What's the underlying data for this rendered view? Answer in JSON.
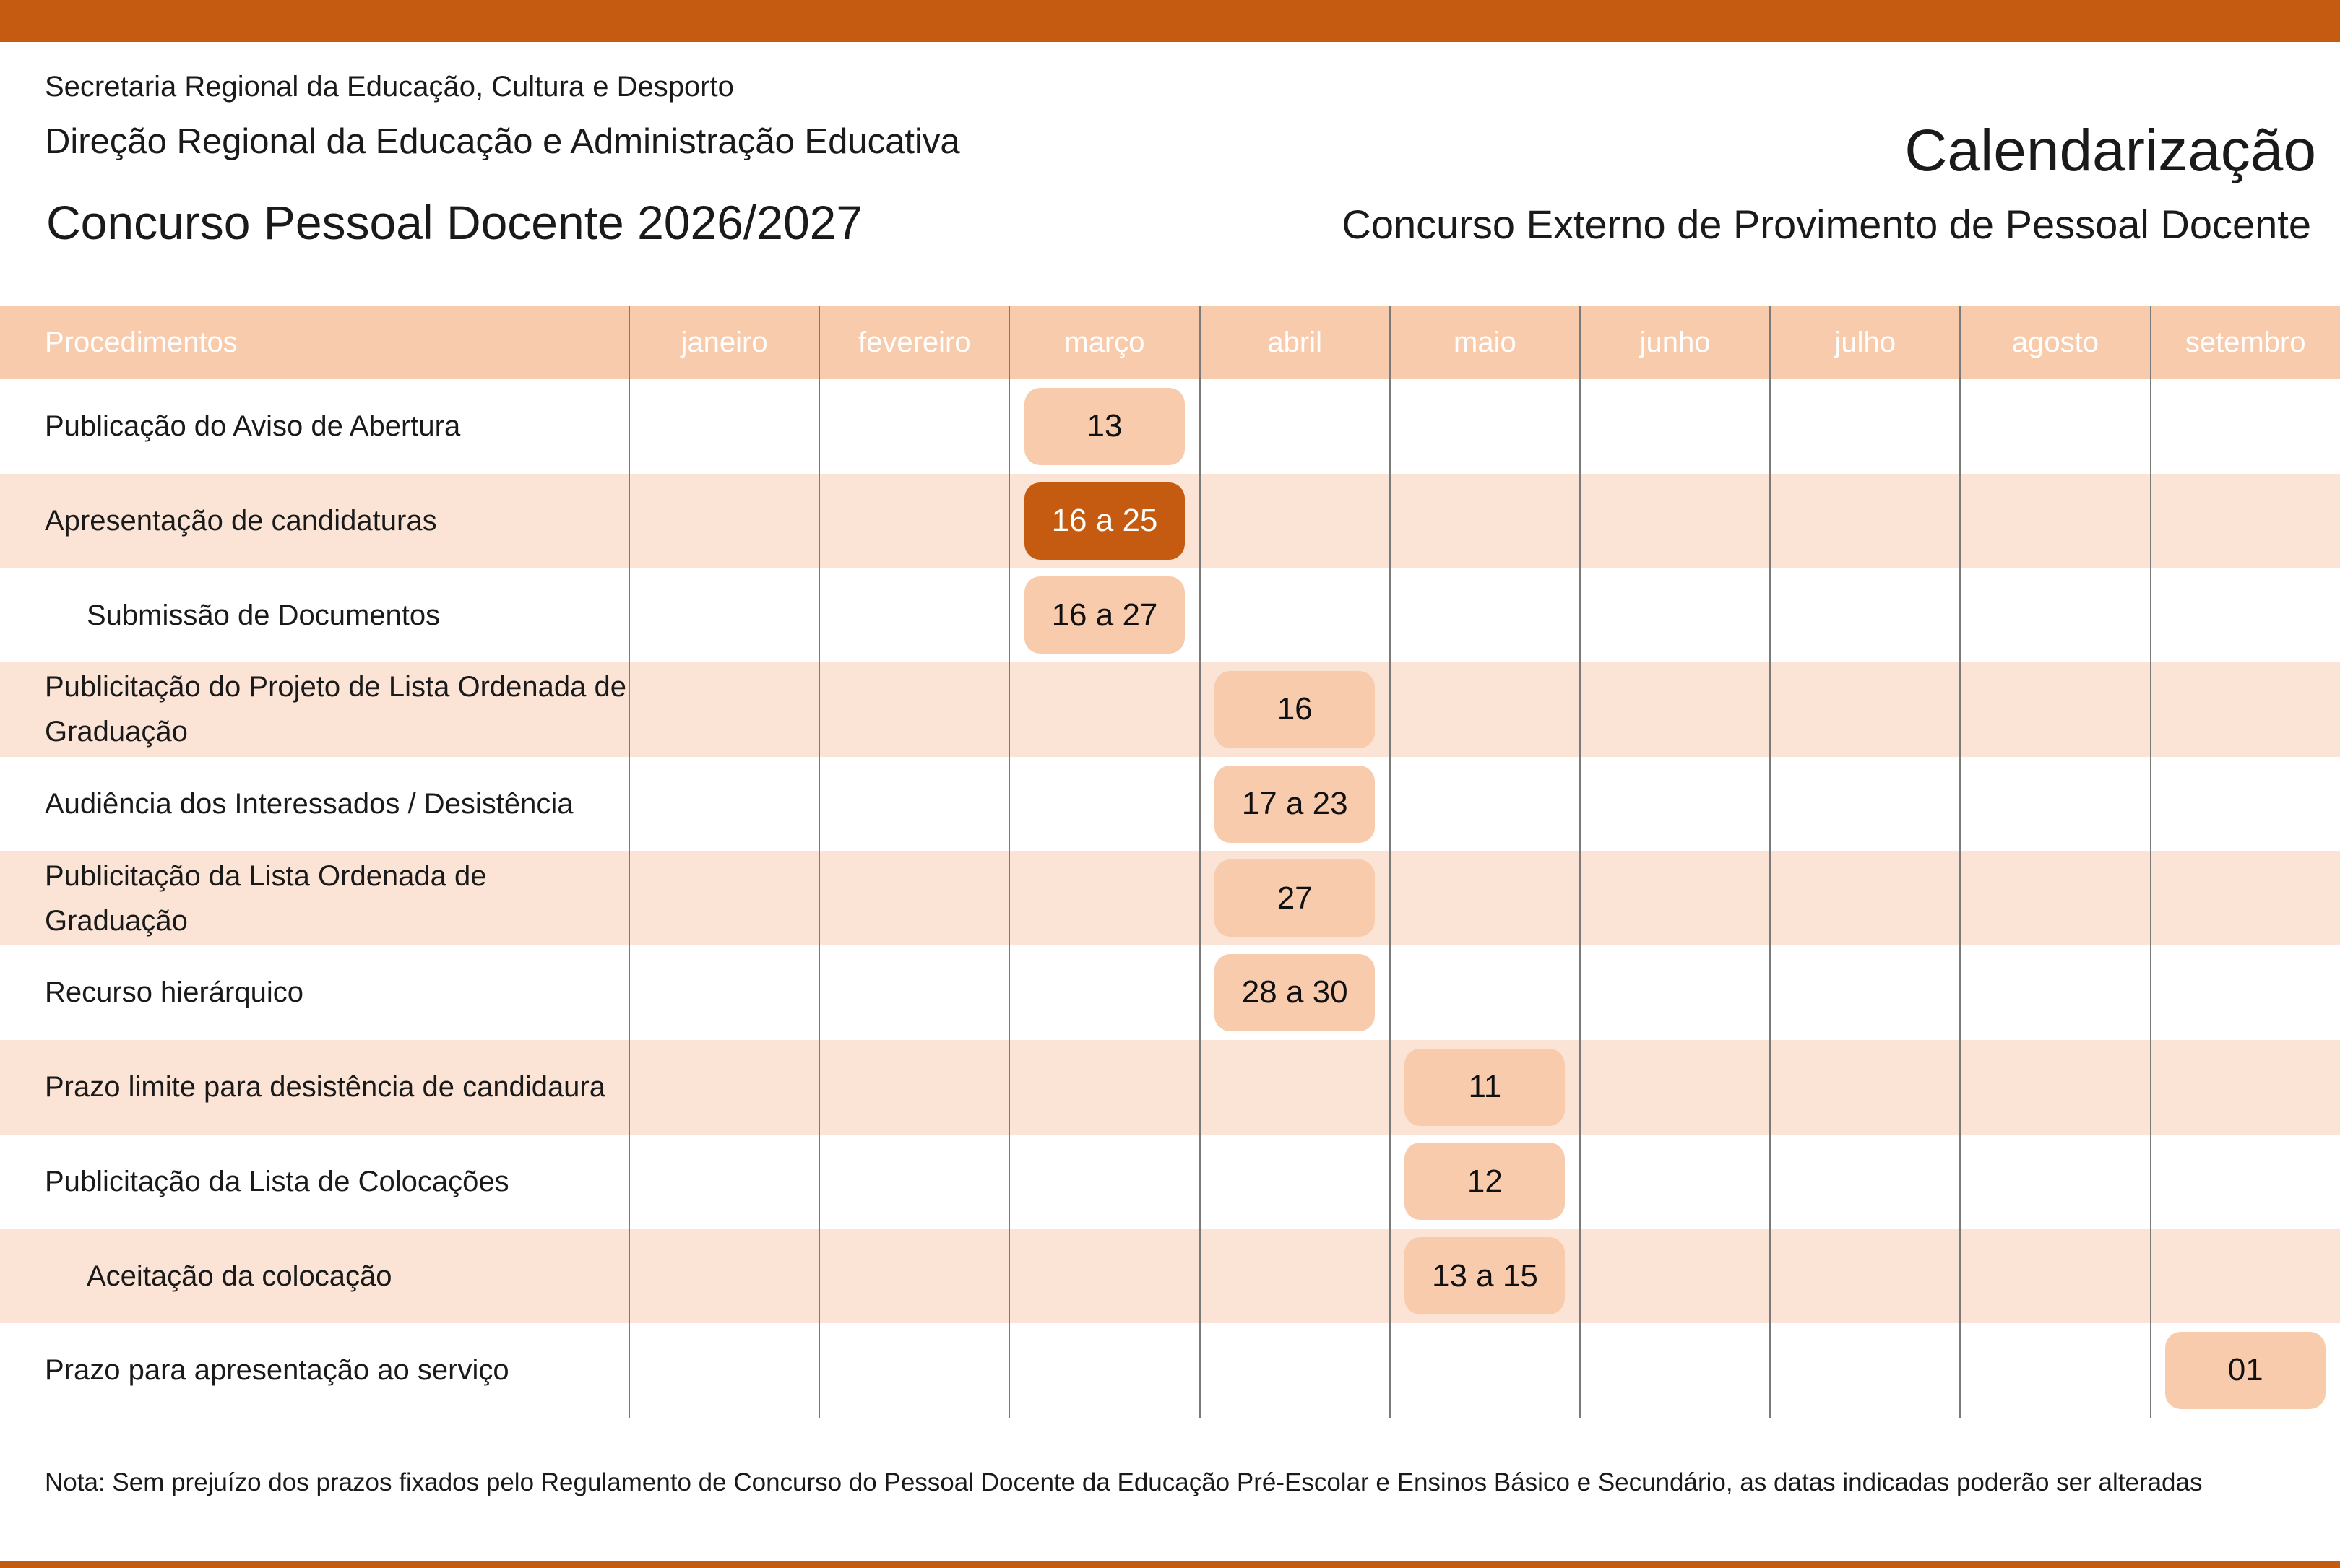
{
  "header": {
    "secretaria": "Secretaria Regional da Educação, Cultura e Desporto",
    "direcao": "Direção Regional da Educação e Administração Educativa",
    "concurso": "Concurso Pessoal Docente 2026/2027",
    "title": "Calendarização",
    "subtitle": "Concurso Externo de Provimento de Pessoal Docente"
  },
  "colors": {
    "accent": "#C55A11",
    "header_bg": "#F8CBAD",
    "alt_row": "#FBE4D5"
  },
  "table": {
    "first_header": "Procedimentos",
    "months": [
      "janeiro",
      "fevereiro",
      "março",
      "abril",
      "maio",
      "junho",
      "julho",
      "agosto",
      "setembro"
    ],
    "rows": [
      {
        "label": "Publicação do Aviso de Abertura",
        "month": 2,
        "date": "13"
      },
      {
        "label": "Apresentação de candidaturas",
        "month": 2,
        "date": "16 a 25",
        "highlight": true
      },
      {
        "label": "Submissão de Documentos",
        "month": 2,
        "date": "16 a 27",
        "indent": true
      },
      {
        "label": "Publicitação do Projeto de Lista Ordenada de Graduação",
        "month": 3,
        "date": "16"
      },
      {
        "label": "Audiência dos Interessados / Desistência",
        "month": 3,
        "date": "17 a 23"
      },
      {
        "label": "Publicitação da Lista Ordenada de Graduação",
        "month": 3,
        "date": "27"
      },
      {
        "label": "Recurso hierárquico",
        "month": 3,
        "date": "28 a 30"
      },
      {
        "label": "Prazo limite para desistência de candidaura",
        "month": 4,
        "date": "11"
      },
      {
        "label": "Publicitação da Lista de Colocações",
        "month": 4,
        "date": "12"
      },
      {
        "label": "Aceitação da colocação",
        "month": 4,
        "date": "13 a 15",
        "indent": true
      },
      {
        "label": "Prazo para apresentação ao serviço",
        "month": 8,
        "date": "01"
      }
    ]
  },
  "note": "Nota: Sem prejuízo dos prazos fixados pelo Regulamento de Concurso do Pessoal Docente da Educação Pré-Escolar e Ensinos Básico e Secundário, as datas indicadas poderão ser alteradas"
}
